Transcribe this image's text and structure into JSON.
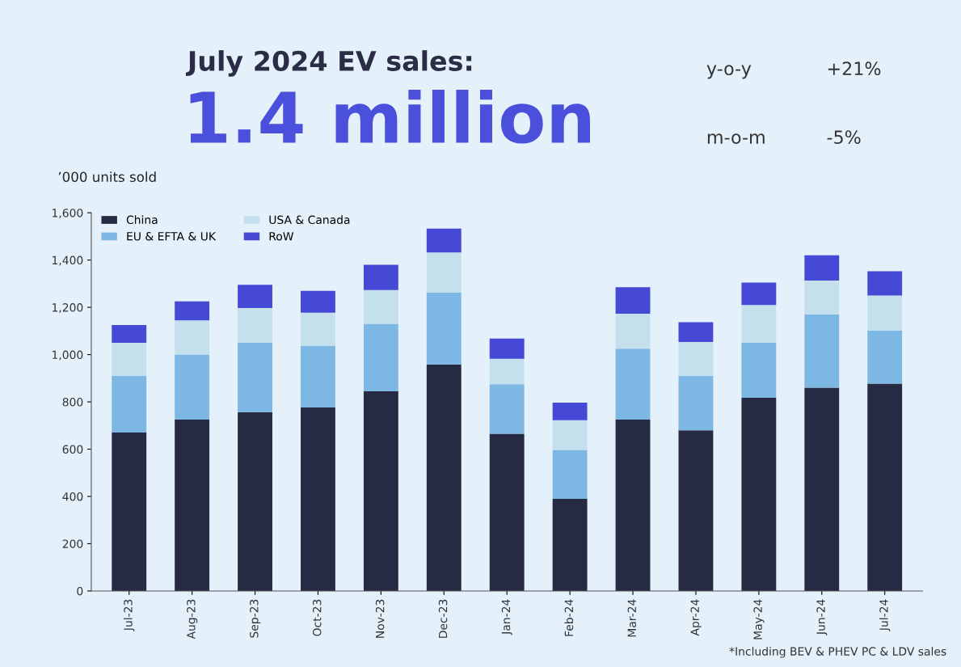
{
  "chart_data": {
    "type": "bar",
    "stacked": true,
    "title": "July 2024 EV sales:",
    "subtitle": "1.4 million",
    "ylabel": "’000 units sold",
    "annotations": [
      "y-o-y",
      "+21%",
      "m-o-m",
      "-5%",
      "*Including BEV & PHEV PC & LDV sales"
    ],
    "categories": [
      "Jul-23",
      "Aug-23",
      "Sep-23",
      "Oct-23",
      "Nov-23",
      "Dec-23",
      "Jan-24",
      "Feb-24",
      "Mar-24",
      "Apr-24",
      "May-24",
      "Jun-24",
      "Jul-24"
    ],
    "series": [
      {
        "name": "China",
        "color": "#272a43",
        "values": [
          670,
          725,
          757,
          777,
          845,
          958,
          665,
          390,
          725,
          680,
          817,
          860,
          877
        ]
      },
      {
        "name": "EU & EFTA & UK",
        "color": "#7db8e5",
        "values": [
          240,
          275,
          293,
          259,
          285,
          304,
          210,
          207,
          300,
          230,
          233,
          310,
          225
        ]
      },
      {
        "name": "USA & Canada",
        "color": "#c4e0ed",
        "values": [
          140,
          145,
          147,
          141,
          143,
          170,
          107,
          125,
          148,
          143,
          160,
          143,
          148
        ]
      },
      {
        "name": "RoW",
        "color": "#4648d6",
        "values": [
          75,
          80,
          98,
          93,
          107,
          101,
          86,
          75,
          112,
          84,
          95,
          107,
          103
        ]
      }
    ],
    "ylim": [
      0,
      1600
    ],
    "yticks": [
      0,
      200,
      400,
      600,
      800,
      {
        "value": 1000,
        "label": "1,000"
      },
      {
        "value": 1200,
        "label": "1,200"
      },
      {
        "value": 1400,
        "label": "1,400"
      },
      {
        "value": 1600,
        "label": "1,600"
      }
    ],
    "grid": false,
    "legend": "top left"
  }
}
